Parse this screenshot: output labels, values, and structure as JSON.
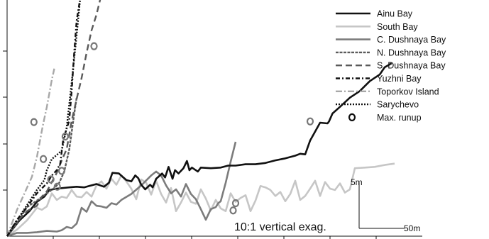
{
  "chart_data": {
    "type": "line",
    "title": "",
    "xlabel": "",
    "ylabel": "",
    "grid": false,
    "legend_position": "top-right",
    "annotation": "10:1 vertical exag.",
    "scale_bar": {
      "vertical_label": "5m",
      "horizontal_label": "50m"
    },
    "marker_legend": "Max. runup",
    "series": [
      {
        "name": "Ainu Bay",
        "color": "#111111",
        "dash": "solid",
        "width": 2.6,
        "points": [
          [
            0,
            0
          ],
          [
            2.5,
            2.4
          ],
          [
            4.5,
            3.8
          ],
          [
            6,
            5.2
          ],
          [
            7.5,
            6
          ],
          [
            8.5,
            7
          ],
          [
            10,
            7.2
          ],
          [
            12.5,
            7.4
          ],
          [
            14,
            7.5
          ],
          [
            15.5,
            7.4
          ],
          [
            16.5,
            7.6
          ],
          [
            18,
            7.9
          ],
          [
            19.5,
            7.5
          ],
          [
            20.5,
            8.1
          ],
          [
            21.2,
            9.6
          ],
          [
            22.5,
            9.5
          ],
          [
            24,
            8.5
          ],
          [
            25,
            8.3
          ],
          [
            25.8,
            9.2
          ],
          [
            26.4,
            8.8
          ],
          [
            27,
            7.8
          ],
          [
            27.8,
            7.1
          ],
          [
            28.8,
            7.8
          ],
          [
            29.3,
            7.4
          ],
          [
            30,
            8.7
          ],
          [
            30.6,
            9.1
          ],
          [
            31.2,
            9.5
          ],
          [
            31.8,
            8.9
          ],
          [
            32.5,
            10.5
          ],
          [
            33.3,
            8.7
          ],
          [
            33.8,
            10
          ],
          [
            34.5,
            9.5
          ],
          [
            35.5,
            10.3
          ],
          [
            36.2,
            11.4
          ],
          [
            36.7,
            10
          ],
          [
            37.2,
            10.4
          ],
          [
            38.4,
            9.8
          ],
          [
            39,
            10.4
          ],
          [
            41,
            10.3
          ],
          [
            43,
            10.4
          ],
          [
            44.5,
            10.7
          ],
          [
            46,
            10.7
          ],
          [
            48,
            10.9
          ],
          [
            50,
            10.9
          ],
          [
            52,
            11.1
          ],
          [
            54,
            11.5
          ],
          [
            56,
            11.8
          ],
          [
            58,
            12.2
          ],
          [
            59,
            12.5
          ],
          [
            60,
            12.4
          ],
          [
            61,
            14.5
          ],
          [
            63,
            17.2
          ],
          [
            64.5,
            17.1
          ],
          [
            64.8,
            17.4
          ],
          [
            65.5,
            18.6
          ],
          [
            67,
            19.6
          ],
          [
            69,
            21
          ],
          [
            71,
            22
          ],
          [
            73,
            23.5
          ],
          [
            75,
            24.5
          ],
          [
            76,
            25.6
          ],
          [
            77.4,
            26.2
          ]
        ]
      },
      {
        "name": "South Bay",
        "color": "#c6c6c6",
        "dash": "solid",
        "width": 2.6,
        "points": [
          [
            0,
            0
          ],
          [
            2,
            1
          ],
          [
            4,
            2.4
          ],
          [
            6,
            4.3
          ],
          [
            7,
            4
          ],
          [
            8,
            4.5
          ],
          [
            9,
            6.5
          ],
          [
            10,
            5.5
          ],
          [
            11,
            6
          ],
          [
            12,
            5.8
          ],
          [
            13,
            7
          ],
          [
            14,
            6
          ],
          [
            15,
            5.9
          ],
          [
            16,
            6.7
          ],
          [
            17,
            6
          ],
          [
            18,
            7.7
          ],
          [
            19,
            8.3
          ],
          [
            20,
            7.2
          ],
          [
            21,
            8.7
          ],
          [
            22,
            7.8
          ],
          [
            23,
            9.2
          ],
          [
            24,
            8.3
          ],
          [
            25,
            7.2
          ],
          [
            26,
            5.6
          ],
          [
            27,
            8.6
          ],
          [
            28,
            8.1
          ],
          [
            29,
            6.3
          ],
          [
            30,
            8.4
          ],
          [
            31,
            6.4
          ],
          [
            32,
            5.1
          ],
          [
            33,
            7.3
          ],
          [
            34,
            3.8
          ],
          [
            35,
            5.1
          ],
          [
            36,
            6.6
          ],
          [
            37,
            5.2
          ],
          [
            38,
            4.9
          ],
          [
            39,
            7.1
          ],
          [
            40,
            5.7
          ],
          [
            41,
            3.9
          ],
          [
            42,
            5.5
          ],
          [
            43,
            4.2
          ],
          [
            44,
            3.8
          ],
          [
            45,
            6.5
          ],
          [
            46,
            5.2
          ],
          [
            47,
            5.8
          ],
          [
            48,
            6.2
          ],
          [
            49,
            3.8
          ],
          [
            50,
            5.4
          ],
          [
            51,
            7.6
          ],
          [
            52,
            7.4
          ],
          [
            53,
            7
          ],
          [
            54,
            6.1
          ],
          [
            55,
            6.7
          ],
          [
            56,
            5.3
          ],
          [
            57,
            6.4
          ],
          [
            58,
            8.4
          ],
          [
            59,
            5.5
          ],
          [
            60,
            6.1
          ],
          [
            61,
            7.2
          ],
          [
            62,
            8.4
          ],
          [
            63,
            6.1
          ],
          [
            64,
            8.2
          ],
          [
            65,
            7.2
          ],
          [
            66,
            7
          ],
          [
            67,
            8
          ],
          [
            68,
            6.6
          ],
          [
            69,
            7.1
          ],
          [
            70,
            10.3
          ],
          [
            72,
            10.4
          ],
          [
            74,
            10.5
          ],
          [
            76,
            10.8
          ],
          [
            78,
            11
          ]
        ]
      },
      {
        "name": "C. Dushnaya  Bay",
        "color": "#7c7c7c",
        "dash": "solid",
        "width": 2.6,
        "points": [
          [
            0,
            0
          ],
          [
            2,
            0.5
          ],
          [
            4,
            0.5
          ],
          [
            6,
            0.6
          ],
          [
            8,
            0.8
          ],
          [
            10,
            0.7
          ],
          [
            11,
            0.9
          ],
          [
            12,
            1.4
          ],
          [
            13,
            1.2
          ],
          [
            14,
            1.9
          ],
          [
            15,
            4.3
          ],
          [
            16,
            3.7
          ],
          [
            17,
            5.3
          ],
          [
            18,
            4.6
          ],
          [
            19,
            4.5
          ],
          [
            20,
            4.3
          ],
          [
            21,
            5
          ],
          [
            22,
            4.8
          ],
          [
            23,
            5.5
          ],
          [
            25,
            6.4
          ],
          [
            27,
            7.7
          ],
          [
            29,
            9.2
          ],
          [
            30,
            9.8
          ],
          [
            31,
            9.2
          ],
          [
            32,
            7.7
          ],
          [
            33,
            6.5
          ],
          [
            34,
            7.1
          ],
          [
            35,
            6
          ],
          [
            36,
            7.9
          ],
          [
            37,
            6.4
          ],
          [
            38,
            5.6
          ],
          [
            39,
            4.1
          ],
          [
            40,
            2.5
          ],
          [
            41,
            4.1
          ],
          [
            42,
            4.4
          ],
          [
            42.5,
            5
          ],
          [
            43,
            5.3
          ],
          [
            44,
            8.1
          ],
          [
            45,
            11.3
          ],
          [
            46,
            14.3
          ]
        ]
      },
      {
        "name": "N. Dushnaya Bay",
        "color": "#5a5a5a",
        "dash": "4,1.5",
        "width": 2.4,
        "points": [
          [
            0,
            0
          ],
          [
            2,
            2
          ],
          [
            4,
            4.4
          ],
          [
            6,
            5.4
          ],
          [
            8,
            6.5
          ],
          [
            9.5,
            7.3
          ],
          [
            10.5,
            8.1
          ],
          [
            11.5,
            9.8
          ],
          [
            12.5,
            13.1
          ],
          [
            13.5,
            18.5
          ],
          [
            14,
            21
          ]
        ]
      },
      {
        "name": "S. Dushnaya Bay",
        "color": "#5a5a5a",
        "dash": "9,5",
        "width": 2.4,
        "points": [
          [
            0,
            0
          ],
          [
            2,
            2.2
          ],
          [
            4,
            3.8
          ],
          [
            6,
            4.6
          ],
          [
            7,
            6
          ],
          [
            8,
            6.8
          ],
          [
            9,
            8.2
          ],
          [
            10,
            9.6
          ],
          [
            11,
            11.5
          ],
          [
            12,
            13.2
          ],
          [
            13,
            17.5
          ],
          [
            14,
            20.8
          ],
          [
            15,
            24
          ],
          [
            16,
            27.8
          ],
          [
            17,
            31.2
          ],
          [
            18,
            33.6
          ],
          [
            19,
            36.7
          ]
        ]
      },
      {
        "name": "Yuzhni  Bay",
        "color": "#111111",
        "dash": "6,3,2,3",
        "width": 2.4,
        "points": [
          [
            0,
            0
          ],
          [
            2,
            2.5
          ],
          [
            4,
            4.4
          ],
          [
            6,
            6.5
          ],
          [
            8,
            8
          ],
          [
            9,
            9.2
          ],
          [
            10,
            10
          ],
          [
            10.7,
            11
          ],
          [
            11.3,
            14.7
          ],
          [
            12.5,
            17.5
          ],
          [
            13,
            22
          ],
          [
            13.5,
            27.8
          ],
          [
            14,
            32.7
          ],
          [
            14.6,
            35.5
          ]
        ]
      },
      {
        "name": "Toporkov Island",
        "color": "#a8a8a8",
        "dash": "9,3,2,3",
        "width": 2.4,
        "points": [
          [
            0,
            0
          ],
          [
            2,
            4
          ],
          [
            3.5,
            6.5
          ],
          [
            5,
            9
          ],
          [
            6,
            12
          ],
          [
            7.2,
            16.8
          ],
          [
            8,
            19.6
          ],
          [
            9,
            23.7
          ],
          [
            9.5,
            25.4
          ]
        ]
      },
      {
        "name": "Sarychevo",
        "color": "#111111",
        "dash": "2,2",
        "width": 2.4,
        "points": [
          [
            0,
            0
          ],
          [
            2,
            2.4
          ],
          [
            4,
            4.7
          ],
          [
            6,
            7
          ],
          [
            7.5,
            8.5
          ],
          [
            8,
            10
          ],
          [
            9,
            11.7
          ],
          [
            10,
            12.3
          ],
          [
            11,
            13
          ],
          [
            12,
            16.5
          ],
          [
            13,
            23.3
          ],
          [
            14,
            30.5
          ],
          [
            15,
            38.3
          ]
        ]
      }
    ],
    "max_runup_points": [
      [
        61,
        17.4
      ],
      [
        46,
        5
      ],
      [
        45.5,
        3.9
      ],
      [
        11,
        9.9
      ],
      [
        10.1,
        7.5
      ],
      [
        8.8,
        8.6
      ],
      [
        7.3,
        11.7
      ],
      [
        11.7,
        15.1
      ],
      [
        5.4,
        17.3
      ],
      [
        17.5,
        28.8
      ]
    ]
  }
}
